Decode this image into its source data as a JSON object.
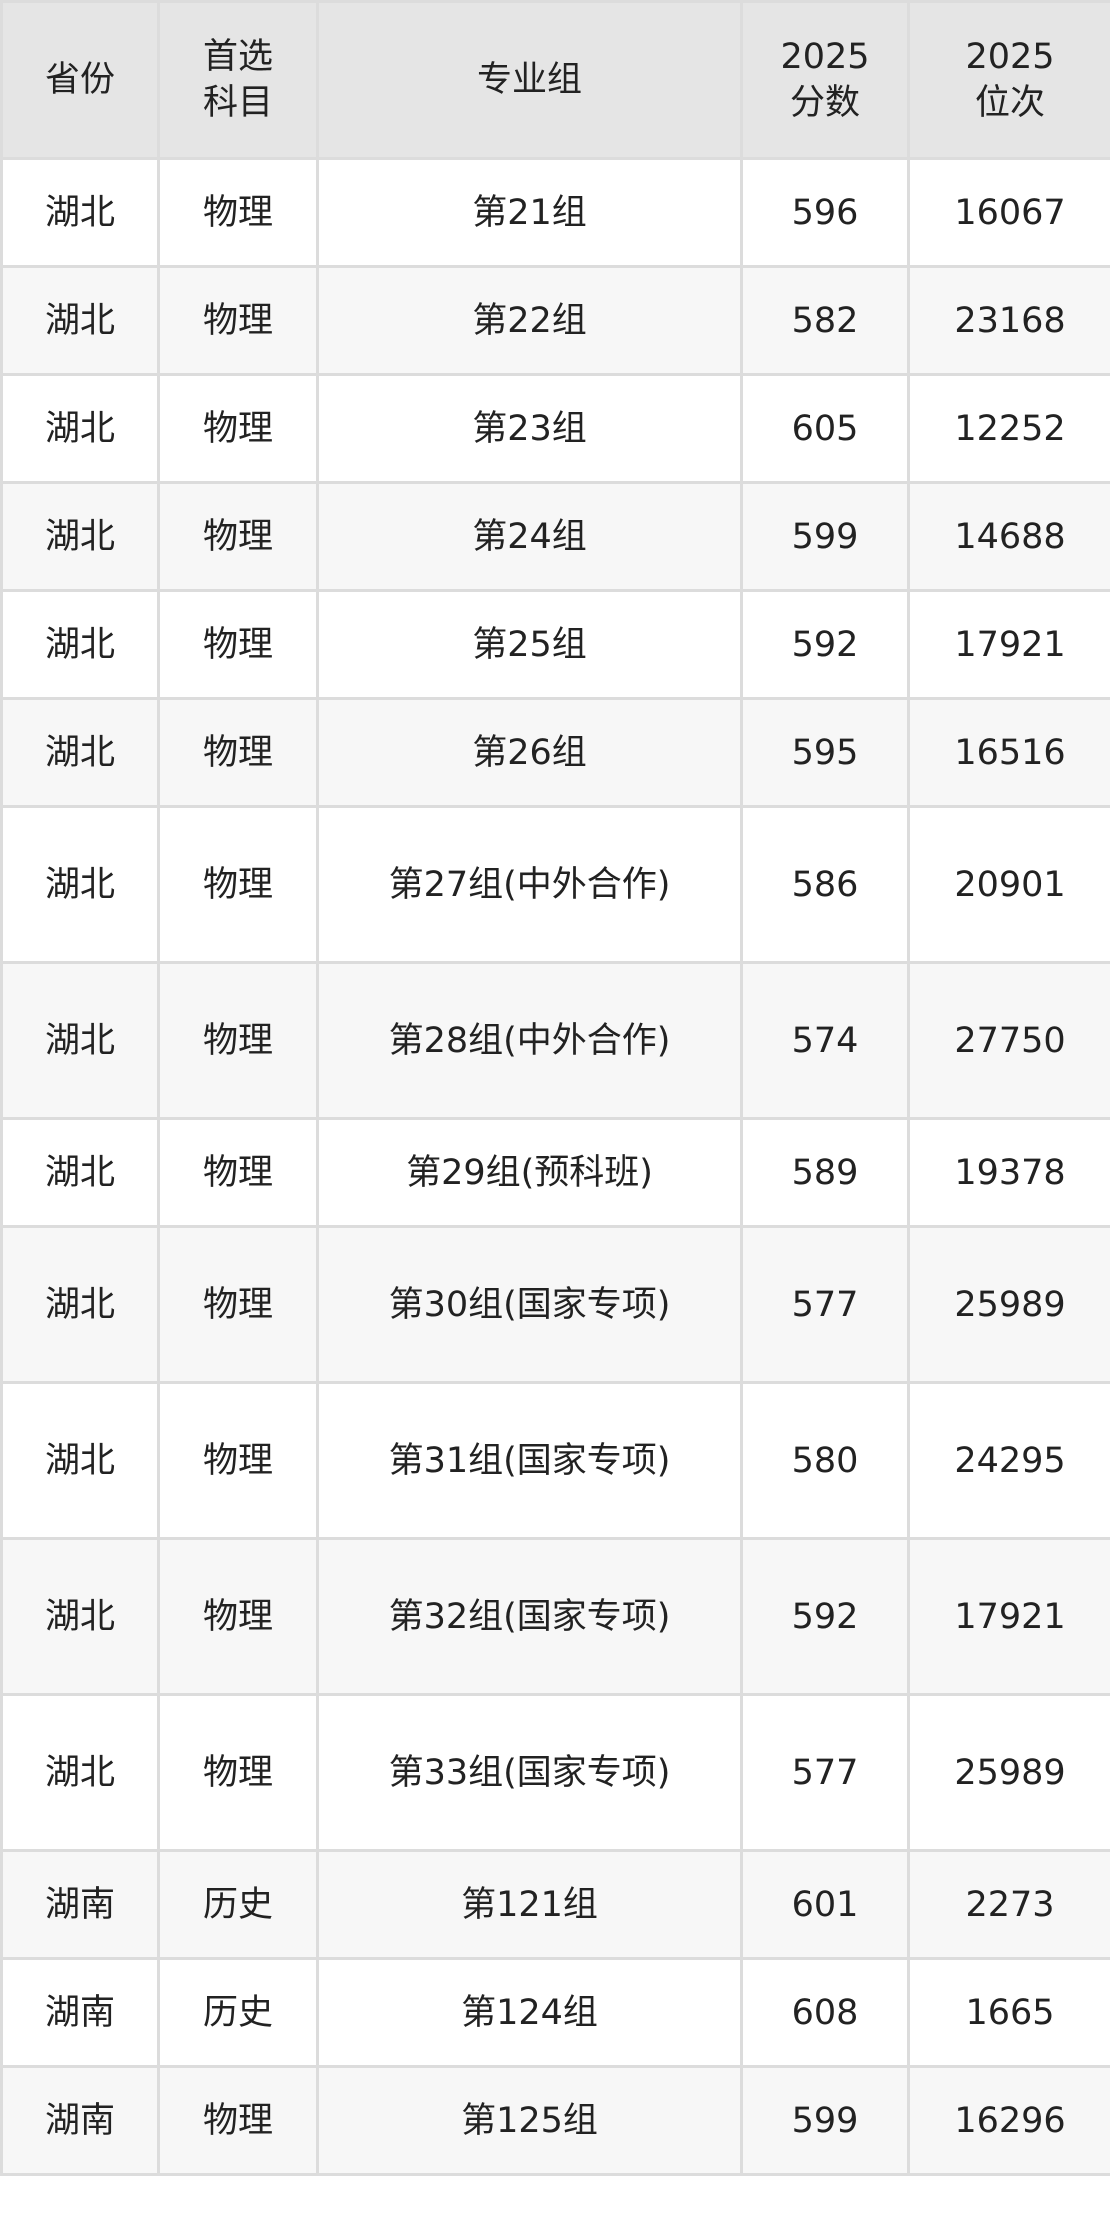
{
  "table": {
    "headers": [
      "省份",
      "首选科目",
      "专业组",
      "2025分数",
      "2025位次"
    ],
    "header_lines": [
      [
        "省份"
      ],
      [
        "首选",
        "科目"
      ],
      [
        "专业组"
      ],
      [
        "2025",
        "分数"
      ],
      [
        "2025",
        "位次"
      ]
    ],
    "rows": [
      {
        "province": "湖北",
        "subject": "物理",
        "group": "第21组",
        "score": "596",
        "rank": "16067"
      },
      {
        "province": "湖北",
        "subject": "物理",
        "group": "第22组",
        "score": "582",
        "rank": "23168"
      },
      {
        "province": "湖北",
        "subject": "物理",
        "group": "第23组",
        "score": "605",
        "rank": "12252"
      },
      {
        "province": "湖北",
        "subject": "物理",
        "group": "第24组",
        "score": "599",
        "rank": "14688"
      },
      {
        "province": "湖北",
        "subject": "物理",
        "group": "第25组",
        "score": "592",
        "rank": "17921"
      },
      {
        "province": "湖北",
        "subject": "物理",
        "group": "第26组",
        "score": "595",
        "rank": "16516"
      },
      {
        "province": "湖北",
        "subject": "物理",
        "group": "第27组(中外合作)",
        "score": "586",
        "rank": "20901"
      },
      {
        "province": "湖北",
        "subject": "物理",
        "group": "第28组(中外合作)",
        "score": "574",
        "rank": "27750"
      },
      {
        "province": "湖北",
        "subject": "物理",
        "group": "第29组(预科班)",
        "score": "589",
        "rank": "19378"
      },
      {
        "province": "湖北",
        "subject": "物理",
        "group": "第30组(国家专项)",
        "score": "577",
        "rank": "25989"
      },
      {
        "province": "湖北",
        "subject": "物理",
        "group": "第31组(国家专项)",
        "score": "580",
        "rank": "24295"
      },
      {
        "province": "湖北",
        "subject": "物理",
        "group": "第32组(国家专项)",
        "score": "592",
        "rank": "17921"
      },
      {
        "province": "湖北",
        "subject": "物理",
        "group": "第33组(国家专项)",
        "score": "577",
        "rank": "25989"
      },
      {
        "province": "湖南",
        "subject": "历史",
        "group": "第121组",
        "score": "601",
        "rank": "2273"
      },
      {
        "province": "湖南",
        "subject": "历史",
        "group": "第124组",
        "score": "608",
        "rank": "1665"
      },
      {
        "province": "湖南",
        "subject": "物理",
        "group": "第125组",
        "score": "599",
        "rank": "16296"
      }
    ]
  }
}
